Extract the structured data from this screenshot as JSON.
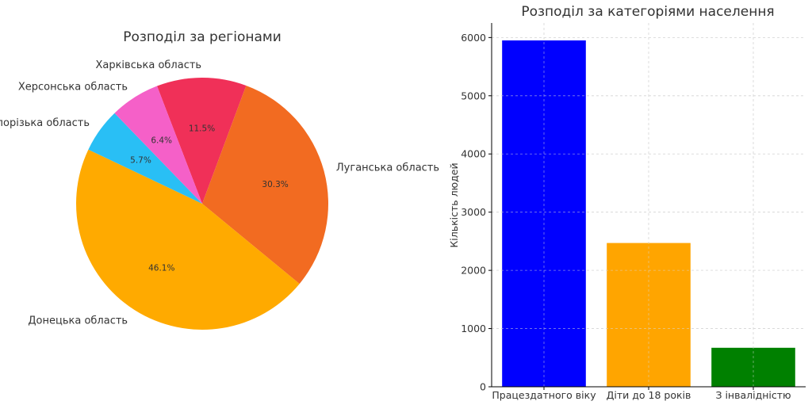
{
  "chart_data": [
    {
      "type": "pie",
      "title": "Розподіл за регіонами",
      "slices": [
        {
          "label": "Харківська область",
          "value": 11.5,
          "pct_label": "11.5%",
          "color": "#f03058"
        },
        {
          "label": "Луганська область",
          "value": 30.3,
          "pct_label": "30.3%",
          "color": "#f26b21"
        },
        {
          "label": "Донецька область",
          "value": 46.1,
          "pct_label": "46.1%",
          "color": "#ffaa00"
        },
        {
          "label": "Запорізька область",
          "value": 5.7,
          "pct_label": "5.7%",
          "color": "#29bff5"
        },
        {
          "label": "Херсонська область",
          "value": 6.4,
          "pct_label": "6.4%",
          "color": "#f560c8"
        }
      ]
    },
    {
      "type": "bar",
      "title": "Розподіл за категоріями населення",
      "categories": [
        "Працездатного віку",
        "Діти до 18 років",
        "З інвалідністю"
      ],
      "values": [
        5950,
        2470,
        670
      ],
      "colors": [
        "#0000ff",
        "#ffa500",
        "#008000"
      ],
      "xlabel": "",
      "ylabel": "Кількість людей",
      "ylim": [
        0,
        6250
      ],
      "yticks": [
        0,
        1000,
        2000,
        3000,
        4000,
        5000,
        6000
      ],
      "grid": true
    }
  ]
}
